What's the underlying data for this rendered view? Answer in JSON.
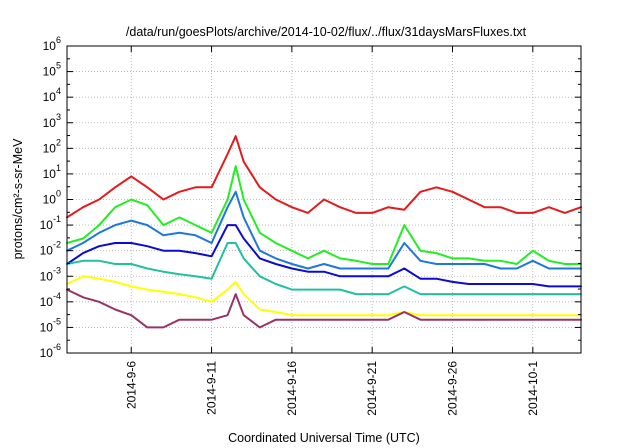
{
  "chart_data": {
    "type": "line",
    "title": "/data/run/goesPlots/archive/2014-10-02/flux/../flux/31daysMarsFluxes.txt",
    "xlabel": "Coordinated Universal Time (UTC)",
    "ylabel": "protons/cm²-s-sr-MeV",
    "y_scale": "log",
    "ylim": [
      1e-06,
      1000000.0
    ],
    "xlim": [
      "2014-09-02",
      "2014-10-04"
    ],
    "grid": true,
    "legend": "none",
    "y_ticks": [
      {
        "base": "10",
        "exp": "-6",
        "value": 1e-06
      },
      {
        "base": "10",
        "exp": "-5",
        "value": 1e-05
      },
      {
        "base": "10",
        "exp": "-4",
        "value": 0.0001
      },
      {
        "base": "10",
        "exp": "-3",
        "value": 0.001
      },
      {
        "base": "10",
        "exp": "-2",
        "value": 0.01
      },
      {
        "base": "10",
        "exp": "-1",
        "value": 0.1
      },
      {
        "base": "10",
        "exp": "0",
        "value": 1
      },
      {
        "base": "10",
        "exp": "1",
        "value": 10
      },
      {
        "base": "10",
        "exp": "2",
        "value": 100
      },
      {
        "base": "10",
        "exp": "3",
        "value": 1000
      },
      {
        "base": "10",
        "exp": "4",
        "value": 10000
      },
      {
        "base": "10",
        "exp": "5",
        "value": 100000
      },
      {
        "base": "10",
        "exp": "6",
        "value": 1000000
      }
    ],
    "x_ticks": [
      "2014-9-6",
      "2014-9-11",
      "2014-9-16",
      "2014-9-21",
      "2014-9-26",
      "2014-10-1"
    ],
    "x_tick_dates": [
      "2014-09-06",
      "2014-09-11",
      "2014-09-16",
      "2014-09-21",
      "2014-09-26",
      "2014-10-01"
    ],
    "series": [
      {
        "color": "#e41a1c",
        "x": [
          "2014-09-02",
          "2014-09-03",
          "2014-09-04",
          "2014-09-05",
          "2014-09-06",
          "2014-09-07",
          "2014-09-08",
          "2014-09-09",
          "2014-09-10",
          "2014-09-11",
          "2014-09-12",
          "2014-09-12T12",
          "2014-09-13",
          "2014-09-14",
          "2014-09-15",
          "2014-09-16",
          "2014-09-17",
          "2014-09-18",
          "2014-09-19",
          "2014-09-20",
          "2014-09-21",
          "2014-09-22",
          "2014-09-23",
          "2014-09-24",
          "2014-09-25",
          "2014-09-26",
          "2014-09-27",
          "2014-09-28",
          "2014-09-29",
          "2014-09-30",
          "2014-10-01",
          "2014-10-02",
          "2014-10-03",
          "2014-10-04"
        ],
        "values": [
          0.2,
          0.5,
          1,
          3,
          8,
          3,
          1,
          2,
          3,
          3,
          60,
          300,
          30,
          3,
          1,
          0.5,
          0.3,
          1,
          0.5,
          0.3,
          0.3,
          0.5,
          0.4,
          2,
          3,
          2,
          1,
          0.5,
          0.5,
          0.3,
          0.3,
          0.5,
          0.3,
          0.5
        ]
      },
      {
        "color": "#22ee22",
        "x": [
          "2014-09-02",
          "2014-09-03",
          "2014-09-04",
          "2014-09-05",
          "2014-09-06",
          "2014-09-07",
          "2014-09-08",
          "2014-09-09",
          "2014-09-10",
          "2014-09-11",
          "2014-09-12",
          "2014-09-12T12",
          "2014-09-13",
          "2014-09-14",
          "2014-09-15",
          "2014-09-16",
          "2014-09-17",
          "2014-09-18",
          "2014-09-19",
          "2014-09-20",
          "2014-09-21",
          "2014-09-22",
          "2014-09-23",
          "2014-09-24",
          "2014-09-25",
          "2014-09-26",
          "2014-09-27",
          "2014-09-28",
          "2014-09-29",
          "2014-09-30",
          "2014-10-01",
          "2014-10-02",
          "2014-10-03",
          "2014-10-04"
        ],
        "values": [
          0.02,
          0.03,
          0.1,
          0.5,
          1,
          0.6,
          0.1,
          0.2,
          0.1,
          0.05,
          1,
          20,
          1,
          0.05,
          0.02,
          0.01,
          0.005,
          0.01,
          0.005,
          0.004,
          0.003,
          0.003,
          0.1,
          0.01,
          0.008,
          0.005,
          0.005,
          0.004,
          0.004,
          0.003,
          0.01,
          0.004,
          0.003,
          0.003
        ]
      },
      {
        "color": "#1e78dc",
        "x": [
          "2014-09-02",
          "2014-09-03",
          "2014-09-04",
          "2014-09-05",
          "2014-09-06",
          "2014-09-07",
          "2014-09-08",
          "2014-09-09",
          "2014-09-10",
          "2014-09-11",
          "2014-09-12",
          "2014-09-12T12",
          "2014-09-13",
          "2014-09-14",
          "2014-09-15",
          "2014-09-16",
          "2014-09-17",
          "2014-09-18",
          "2014-09-19",
          "2014-09-20",
          "2014-09-21",
          "2014-09-22",
          "2014-09-23",
          "2014-09-24",
          "2014-09-25",
          "2014-09-26",
          "2014-09-27",
          "2014-09-28",
          "2014-09-29",
          "2014-09-30",
          "2014-10-01",
          "2014-10-02",
          "2014-10-03",
          "2014-10-04"
        ],
        "values": [
          0.01,
          0.02,
          0.05,
          0.1,
          0.15,
          0.1,
          0.04,
          0.05,
          0.04,
          0.02,
          0.5,
          2,
          0.2,
          0.01,
          0.005,
          0.003,
          0.002,
          0.003,
          0.002,
          0.002,
          0.002,
          0.002,
          0.02,
          0.004,
          0.003,
          0.003,
          0.003,
          0.003,
          0.002,
          0.002,
          0.004,
          0.002,
          0.002,
          0.002
        ]
      },
      {
        "color": "#0b0bd1",
        "x": [
          "2014-09-02",
          "2014-09-03",
          "2014-09-04",
          "2014-09-05",
          "2014-09-06",
          "2014-09-07",
          "2014-09-08",
          "2014-09-09",
          "2014-09-10",
          "2014-09-11",
          "2014-09-12",
          "2014-09-12T12",
          "2014-09-13",
          "2014-09-14",
          "2014-09-15",
          "2014-09-16",
          "2014-09-17",
          "2014-09-18",
          "2014-09-19",
          "2014-09-20",
          "2014-09-21",
          "2014-09-22",
          "2014-09-23",
          "2014-09-24",
          "2014-09-25",
          "2014-09-26",
          "2014-09-27",
          "2014-09-28",
          "2014-09-29",
          "2014-09-30",
          "2014-10-01",
          "2014-10-02",
          "2014-10-03",
          "2014-10-04"
        ],
        "values": [
          0.003,
          0.008,
          0.015,
          0.02,
          0.02,
          0.015,
          0.01,
          0.01,
          0.008,
          0.006,
          0.1,
          0.1,
          0.03,
          0.005,
          0.003,
          0.002,
          0.0015,
          0.0015,
          0.001,
          0.001,
          0.001,
          0.001,
          0.002,
          0.0008,
          0.0008,
          0.0006,
          0.0005,
          0.0005,
          0.0005,
          0.0005,
          0.0005,
          0.0004,
          0.0004,
          0.0004
        ]
      },
      {
        "color": "#20c0a0",
        "x": [
          "2014-09-02",
          "2014-09-03",
          "2014-09-04",
          "2014-09-05",
          "2014-09-06",
          "2014-09-07",
          "2014-09-08",
          "2014-09-09",
          "2014-09-10",
          "2014-09-11",
          "2014-09-12",
          "2014-09-12T12",
          "2014-09-13",
          "2014-09-14",
          "2014-09-15",
          "2014-09-16",
          "2014-09-17",
          "2014-09-18",
          "2014-09-19",
          "2014-09-20",
          "2014-09-21",
          "2014-09-22",
          "2014-09-23",
          "2014-09-24",
          "2014-09-25",
          "2014-09-26",
          "2014-09-27",
          "2014-09-28",
          "2014-09-29",
          "2014-09-30",
          "2014-10-01",
          "2014-10-02",
          "2014-10-03",
          "2014-10-04"
        ],
        "values": [
          0.003,
          0.004,
          0.004,
          0.003,
          0.003,
          0.002,
          0.0015,
          0.0012,
          0.001,
          0.0008,
          0.02,
          0.02,
          0.005,
          0.001,
          0.0005,
          0.0003,
          0.0003,
          0.0003,
          0.0003,
          0.0002,
          0.0002,
          0.0002,
          0.0004,
          0.0002,
          0.0002,
          0.0002,
          0.0002,
          0.0002,
          0.0002,
          0.0002,
          0.0002,
          0.0002,
          0.0002,
          0.0002
        ]
      },
      {
        "color": "#ffff00",
        "x": [
          "2014-09-02",
          "2014-09-03",
          "2014-09-04",
          "2014-09-05",
          "2014-09-06",
          "2014-09-07",
          "2014-09-08",
          "2014-09-09",
          "2014-09-10",
          "2014-09-11",
          "2014-09-12",
          "2014-09-12T12",
          "2014-09-13",
          "2014-09-14",
          "2014-09-15",
          "2014-09-16",
          "2014-09-17",
          "2014-09-18",
          "2014-09-19",
          "2014-09-20",
          "2014-09-21",
          "2014-09-22",
          "2014-09-23",
          "2014-09-24",
          "2014-09-25",
          "2014-09-26",
          "2014-09-27",
          "2014-09-28",
          "2014-09-29",
          "2014-09-30",
          "2014-10-01",
          "2014-10-02",
          "2014-10-03",
          "2014-10-04"
        ],
        "values": [
          0.0005,
          0.001,
          0.0008,
          0.0006,
          0.0004,
          0.0003,
          0.00025,
          0.0002,
          0.00015,
          0.0001,
          0.0003,
          0.0006,
          0.0002,
          5e-05,
          4e-05,
          3e-05,
          3e-05,
          3e-05,
          3e-05,
          3e-05,
          3e-05,
          3e-05,
          4e-05,
          3e-05,
          3e-05,
          3e-05,
          3e-05,
          3e-05,
          3e-05,
          3e-05,
          3e-05,
          3e-05,
          3e-05,
          3e-05
        ]
      },
      {
        "color": "#993366",
        "x": [
          "2014-09-02",
          "2014-09-03",
          "2014-09-04",
          "2014-09-05",
          "2014-09-06",
          "2014-09-07",
          "2014-09-08",
          "2014-09-09",
          "2014-09-10",
          "2014-09-11",
          "2014-09-12",
          "2014-09-12T12",
          "2014-09-13",
          "2014-09-14",
          "2014-09-15",
          "2014-09-16",
          "2014-09-17",
          "2014-09-18",
          "2014-09-19",
          "2014-09-20",
          "2014-09-21",
          "2014-09-22",
          "2014-09-23",
          "2014-09-24",
          "2014-09-25",
          "2014-09-26",
          "2014-09-27",
          "2014-09-28",
          "2014-09-29",
          "2014-09-30",
          "2014-10-01",
          "2014-10-02",
          "2014-10-03",
          "2014-10-04"
        ],
        "values": [
          0.0003,
          0.00015,
          0.0001,
          5e-05,
          3e-05,
          1e-05,
          1e-05,
          2e-05,
          2e-05,
          2e-05,
          3e-05,
          0.0002,
          3e-05,
          1e-05,
          2e-05,
          2e-05,
          2e-05,
          2e-05,
          2e-05,
          2e-05,
          2e-05,
          2e-05,
          4e-05,
          2e-05,
          2e-05,
          2e-05,
          2e-05,
          2e-05,
          2e-05,
          2e-05,
          2e-05,
          2e-05,
          2e-05,
          2e-05
        ]
      }
    ]
  }
}
